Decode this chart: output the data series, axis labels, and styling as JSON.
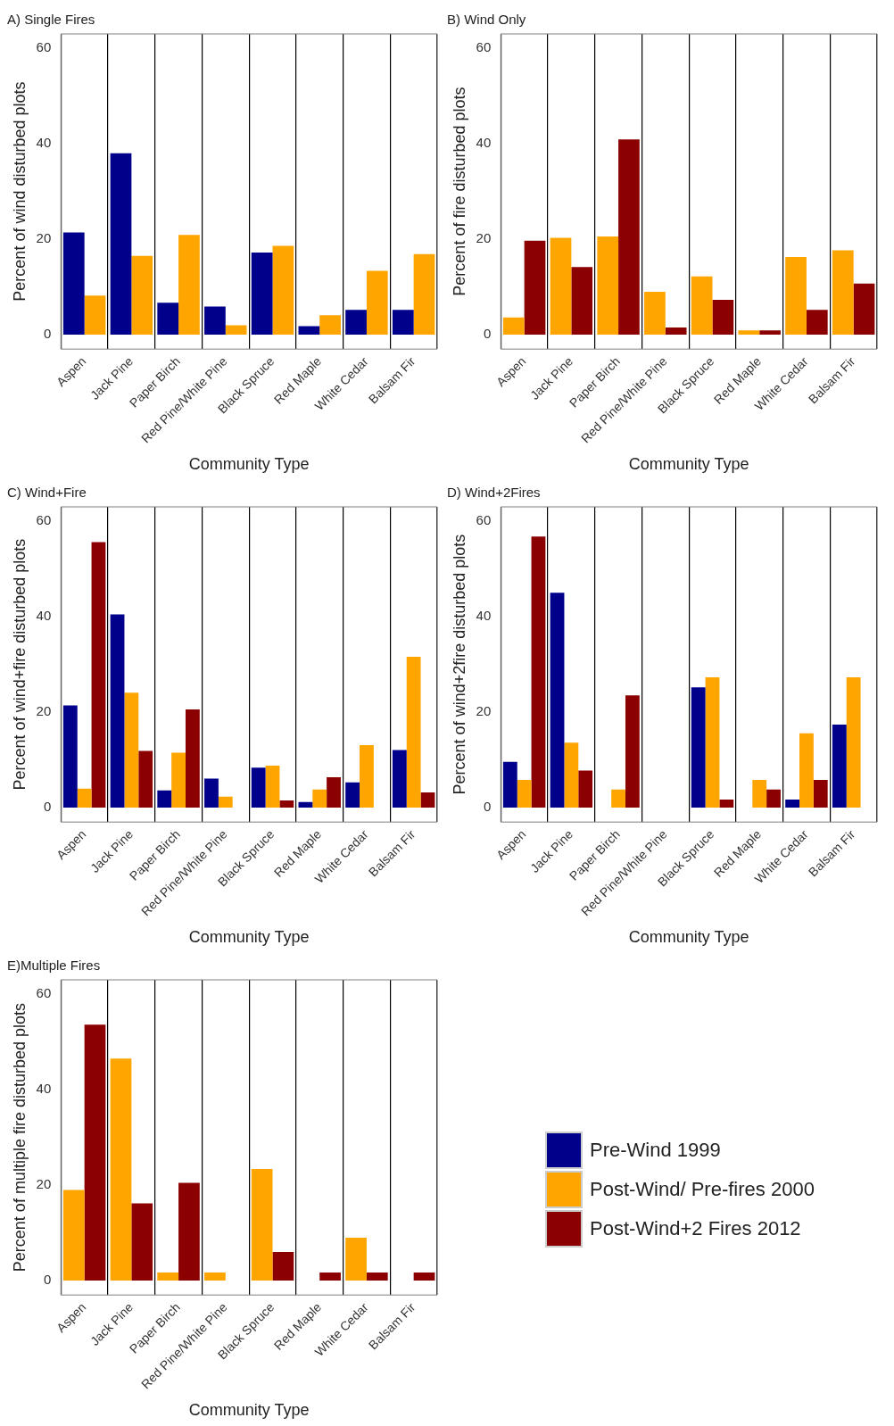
{
  "chart_data": [
    {
      "type": "bar",
      "title": "A) Single Fires",
      "xlabel": "Community Type",
      "ylabel": "Percent of wind disturbed plots",
      "categories": [
        "Aspen",
        "Jack Pine",
        "Paper Birch",
        "Red Pine/White Pine",
        "Black Spruce",
        "Red Maple",
        "White Cedar",
        "Balsam Fir"
      ],
      "series": [
        {
          "color": "#00008b",
          "values": [
            21.4,
            38.0,
            6.7,
            5.9,
            17.2,
            1.8,
            5.2,
            5.2
          ]
        },
        {
          "color": "#ffa500",
          "values": [
            8.2,
            16.5,
            20.9,
            2.0,
            18.6,
            4.1,
            13.4,
            16.9
          ]
        }
      ],
      "ylim": [
        -3,
        63
      ],
      "yticks": [
        0,
        20,
        40,
        60
      ],
      "grid": "x"
    },
    {
      "type": "bar",
      "title": "B) Wind Only",
      "xlabel": "Community Type",
      "ylabel": "Percent of fire disturbed plots",
      "categories": [
        "Aspen",
        "Jack Pine",
        "Paper Birch",
        "Red Pine/White Pine",
        "Black Spruce",
        "Red Maple",
        "White Cedar",
        "Balsam Fir"
      ],
      "series": [
        {
          "color": "#ffa500",
          "values": [
            3.6,
            20.3,
            20.6,
            9.0,
            12.2,
            0.9,
            16.3,
            17.7
          ]
        },
        {
          "color": "#8b0000",
          "values": [
            19.7,
            14.2,
            40.9,
            1.5,
            7.3,
            0.9,
            5.2,
            10.7
          ]
        }
      ],
      "ylim": [
        -3,
        63
      ],
      "yticks": [
        0,
        20,
        40,
        60
      ],
      "grid": "x"
    },
    {
      "type": "bar",
      "title": "C) Wind+Fire",
      "xlabel": "Community Type",
      "ylabel": "Percent of wind+fire disturbed plots",
      "categories": [
        "Aspen",
        "Jack Pine",
        "Paper Birch",
        "Red Pine/White Pine",
        "Black Spruce",
        "Red Maple",
        "White Cedar",
        "Balsam Fir"
      ],
      "series": [
        {
          "name": "Pre-Wind 1999",
          "color": "#00008b",
          "values": [
            21.4,
            40.5,
            3.6,
            6.1,
            8.4,
            1.2,
            5.3,
            12.1
          ]
        },
        {
          "name": "Post-Wind/ Pre-fires 2000",
          "color": "#ffa500",
          "values": [
            4.0,
            24.1,
            11.5,
            2.3,
            8.8,
            3.8,
            13.1,
            31.6
          ]
        },
        {
          "name": "Post-Wind+2 Fires 2012",
          "color": "#8b0000",
          "values": [
            55.6,
            11.9,
            20.6,
            null,
            1.5,
            6.4,
            null,
            3.2
          ]
        }
      ],
      "ylim": [
        -3,
        63
      ],
      "yticks": [
        0,
        20,
        40,
        60
      ],
      "grid": "x",
      "legend": "bottom right"
    },
    {
      "type": "bar",
      "title": "D) Wind+2Fires",
      "xlabel": "Community Type",
      "ylabel": "Percent of wind+2fire disturbed plots",
      "categories": [
        "Aspen",
        "Jack Pine",
        "Paper Birch",
        "Red Pine/White Pine",
        "Black Spruce",
        "Red Maple",
        "White Cedar",
        "Balsam Fir"
      ],
      "series": [
        {
          "color": "#00008b",
          "values": [
            9.6,
            45.0,
            null,
            null,
            25.2,
            null,
            1.7,
            17.4
          ]
        },
        {
          "color": "#ffa500",
          "values": [
            5.8,
            13.6,
            3.8,
            null,
            27.3,
            5.8,
            15.6,
            27.3
          ]
        },
        {
          "color": "#8b0000",
          "values": [
            56.8,
            7.8,
            23.5,
            null,
            1.7,
            3.8,
            5.8,
            null
          ]
        }
      ],
      "ylim": [
        -3,
        63
      ],
      "yticks": [
        0,
        20,
        40,
        60
      ],
      "grid": "x"
    },
    {
      "type": "bar",
      "title": "E)Multiple Fires",
      "xlabel": "Community Type",
      "ylabel": "Percent of multiple fire disturbed plots",
      "categories": [
        "Aspen",
        "Jack Pine",
        "Paper Birch",
        "Red Pine/White Pine",
        "Black Spruce",
        "Red Maple",
        "White Cedar",
        "Balsam Fir"
      ],
      "series": [
        {
          "color": "#ffa500",
          "values": [
            19.0,
            46.5,
            1.7,
            1.7,
            23.4,
            null,
            9.0,
            null
          ]
        },
        {
          "color": "#8b0000",
          "values": [
            53.6,
            16.2,
            20.5,
            null,
            6.0,
            1.7,
            1.7,
            1.7
          ]
        }
      ],
      "ylim": [
        -3,
        63
      ],
      "yticks": [
        0,
        20,
        40,
        60
      ],
      "grid": "x"
    }
  ]
}
